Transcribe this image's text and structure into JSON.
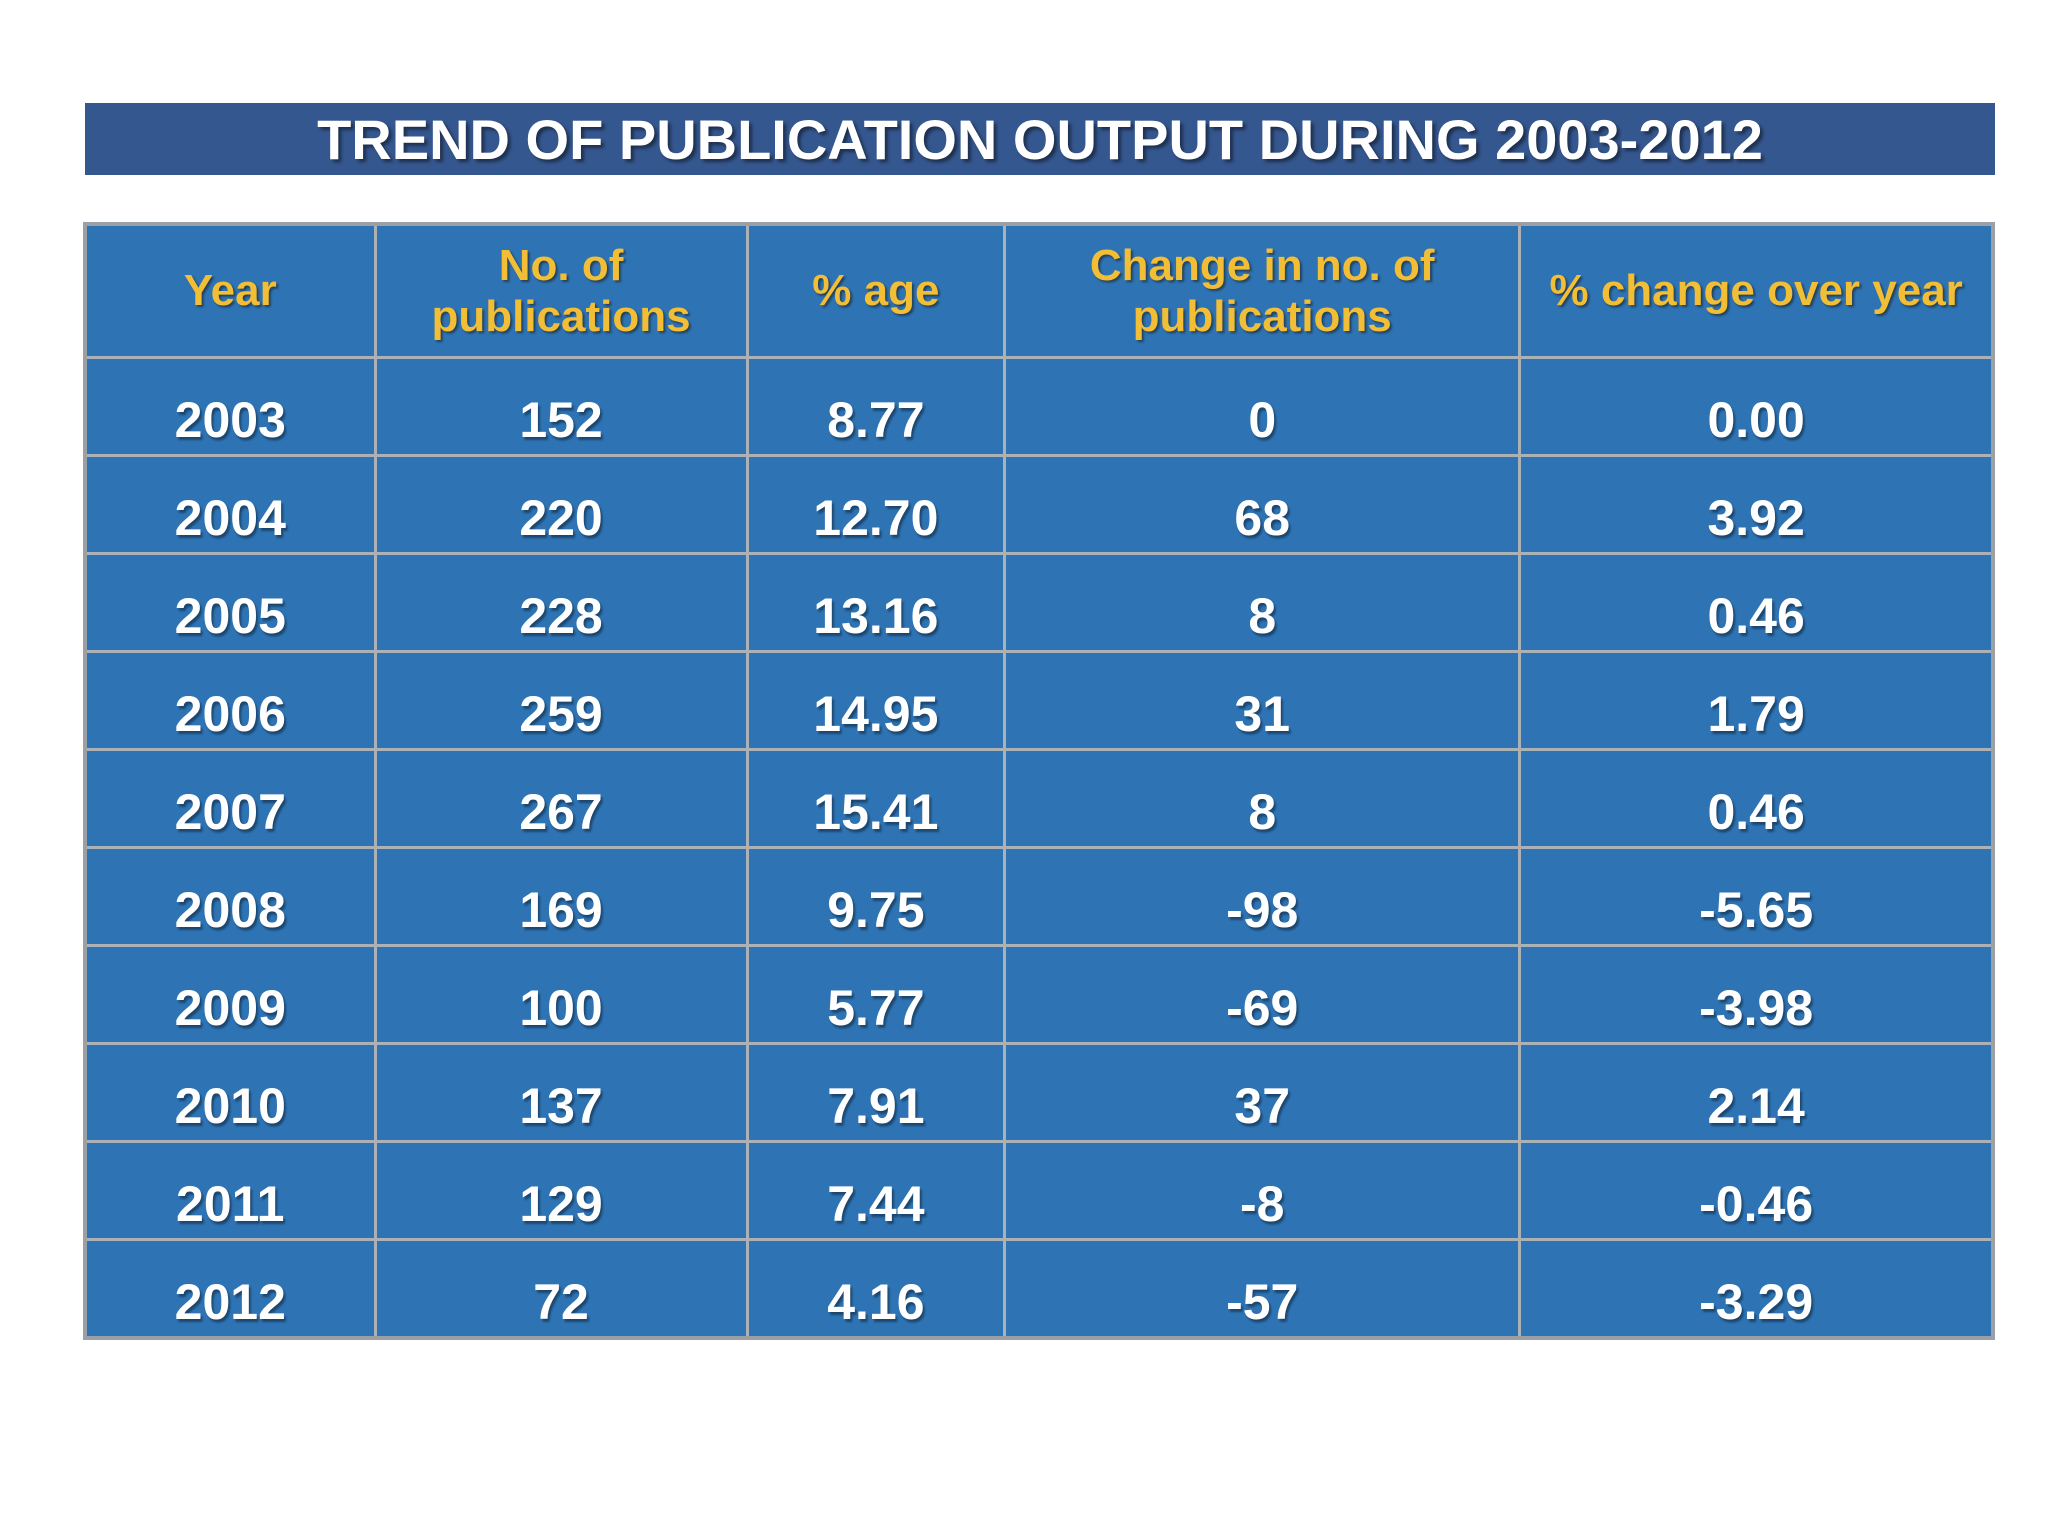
{
  "title": "TREND OF PUBLICATION OUTPUT DURING 2003-2012",
  "colors": {
    "background": "#FFFFFF",
    "banner_blue": "#35578F",
    "cell_blue": "#2E74B5",
    "grid_gray": "#ACB1B6",
    "header_text_gold": "#F2BE35",
    "body_text_white": "#FFFFFF"
  },
  "chart_data": {
    "type": "table",
    "title": "TREND OF PUBLICATION OUTPUT DURING 2003-2012",
    "columns": [
      "Year",
      "No. of publications",
      "% age",
      "Change in no. of publications",
      "% change over year"
    ],
    "rows": [
      [
        "2003",
        "152",
        "8.77",
        "0",
        "0.00"
      ],
      [
        "2004",
        "220",
        "12.70",
        "68",
        "3.92"
      ],
      [
        "2005",
        "228",
        "13.16",
        "8",
        "0.46"
      ],
      [
        "2006",
        "259",
        "14.95",
        "31",
        "1.79"
      ],
      [
        "2007",
        "267",
        "15.41",
        "8",
        "0.46"
      ],
      [
        "2008",
        "169",
        "9.75",
        "-98",
        "-5.65"
      ],
      [
        "2009",
        "100",
        "5.77",
        "-69",
        "-3.98"
      ],
      [
        "2010",
        "137",
        "7.91",
        "37",
        "2.14"
      ],
      [
        "2011",
        "129",
        "7.44",
        "-8",
        "-0.46"
      ],
      [
        "2012",
        "72",
        "4.16",
        "-57",
        "-3.29"
      ]
    ],
    "layout": {
      "grid": true,
      "header_position": "top",
      "years_range": "2003-2012"
    }
  }
}
